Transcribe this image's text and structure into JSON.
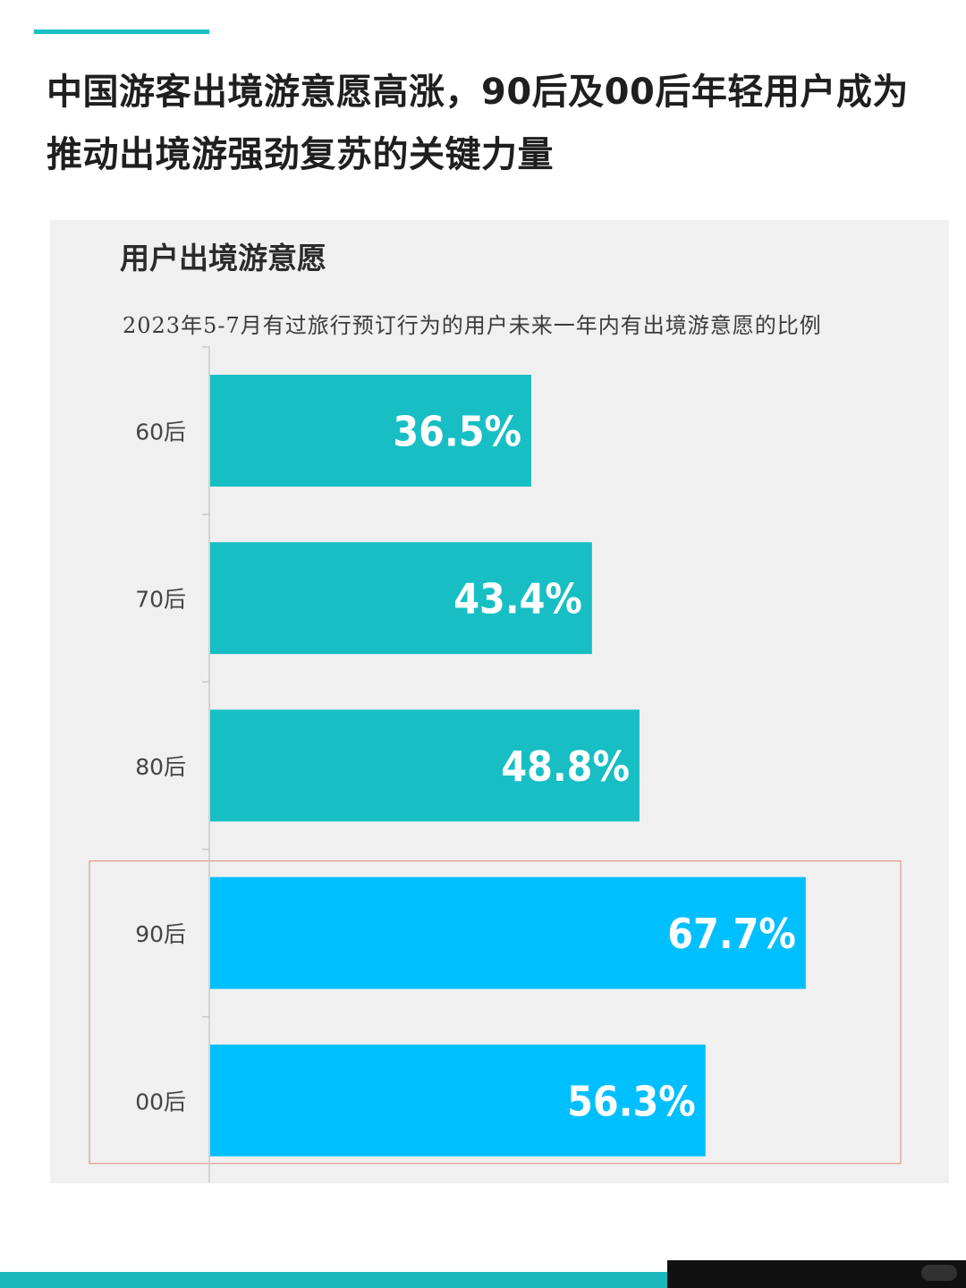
{
  "page": {
    "headline": "中国游客出境游意愿高涨，90后及00后年轻用户成为推动出境游强劲复苏的关键力量",
    "accent_color": "#17bfc4"
  },
  "chart_data": {
    "type": "bar",
    "orientation": "horizontal",
    "title": "用户出境游意愿",
    "subtitle": "2023年5-7月有过旅行预订行为的用户未来一年内有出境游意愿的比例",
    "categories": [
      "60后",
      "70后",
      "80后",
      "90后",
      "00后"
    ],
    "values": [
      36.5,
      43.4,
      48.8,
      67.7,
      56.3
    ],
    "value_labels": [
      "36.5%",
      "43.4%",
      "48.8%",
      "67.7%",
      "56.3%"
    ],
    "unit": "%",
    "xlim": [
      0,
      70
    ],
    "grid": false,
    "highlighted_categories": [
      "90后",
      "00后"
    ],
    "colors": {
      "default": "#17bfc4",
      "highlight": "#00bfff",
      "highlight_box": "#e3857a",
      "axis": "#c8c8c8",
      "category_label": "#444444",
      "value_label": "#ffffff"
    }
  }
}
